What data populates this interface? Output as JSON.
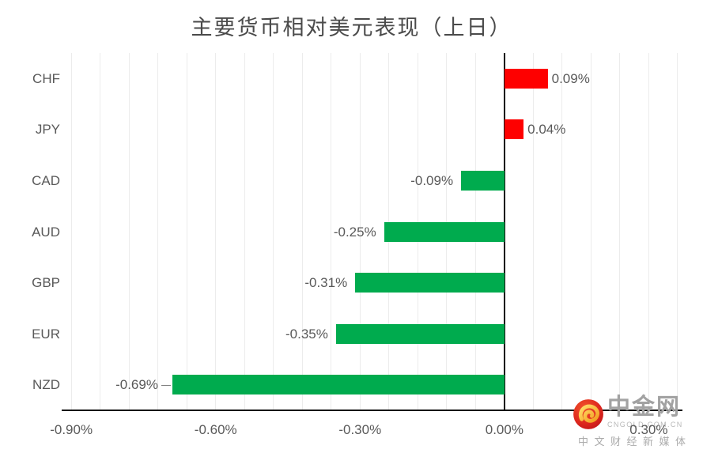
{
  "chart_data": {
    "type": "bar",
    "orientation": "horizontal",
    "title": "主要货币相对美元表现（上日）",
    "categories": [
      "CHF",
      "JPY",
      "CAD",
      "AUD",
      "GBP",
      "EUR",
      "NZD"
    ],
    "values": [
      0.09,
      0.04,
      -0.09,
      -0.25,
      -0.31,
      -0.35,
      -0.69
    ],
    "value_labels": [
      "0.09%",
      "0.04%",
      "-0.09%",
      "-0.25%",
      "-0.31%",
      "-0.35%",
      "-0.69%"
    ],
    "xlabel": "",
    "ylabel": "",
    "xlim": [
      -0.92,
      0.37
    ],
    "x_ticks": [
      {
        "value": -0.9,
        "label": "-0.90%"
      },
      {
        "value": -0.6,
        "label": "-0.60%"
      },
      {
        "value": -0.3,
        "label": "-0.30%"
      },
      {
        "value": 0.0,
        "label": "0.00%"
      },
      {
        "value": 0.3,
        "label": "0.30%"
      }
    ],
    "minor_grid_step": 0.06,
    "grid": true,
    "legend": false,
    "leader_line_category": "NZD"
  },
  "colors": {
    "bar_positive": "#fe0000",
    "bar_negative": "#00ab4e",
    "label_text": "#595959",
    "gridline": "#ececec",
    "axis_line": "#0d0d0d",
    "logo_red": "#e02a1f",
    "logo_gold": "#f9b822",
    "watermark_gray": "#a2a2a2"
  },
  "watermark": {
    "brand": "中金网",
    "domain": "CNGOLD.COM.CN",
    "tagline": "中文财经新媒体",
    "logo_icon": "red-circle-gold-swirl-icon"
  }
}
